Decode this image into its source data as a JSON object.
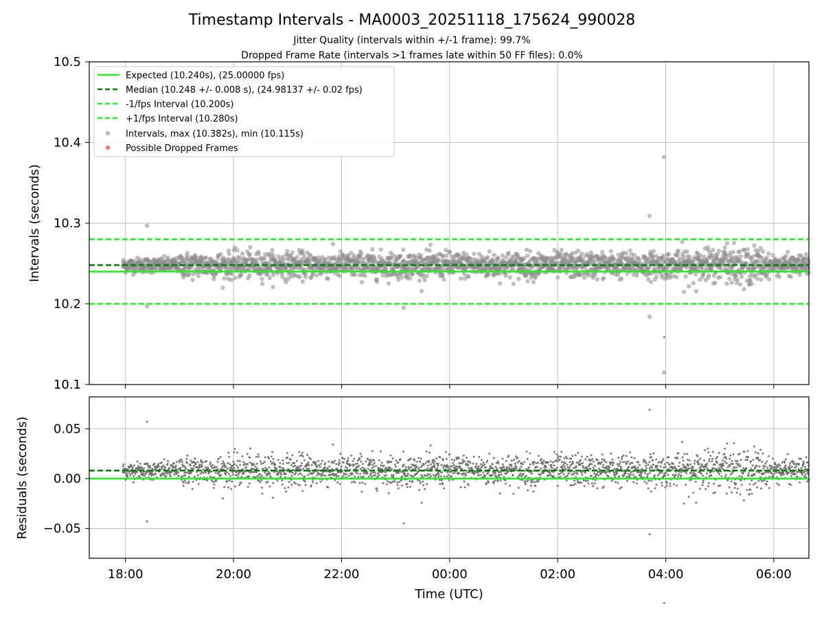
{
  "colors": {
    "expected": "#22ee22",
    "median": "#0a7a0a",
    "fps_band": "#22ee22",
    "interval_points": "#8c8c8c",
    "dropped": "#ff5555",
    "grid": "#b0b0b0"
  },
  "chart_data": [
    {
      "type": "scatter",
      "title": "Timestamp Intervals - MA0003_20251118_175624_990028",
      "subtitle_lines": [
        "Jitter Quality (intervals within +/-1 frame): 99.7%",
        "Dropped Frame Rate (intervals >1 frames late within 50 FF files): 0.0%"
      ],
      "xlabel": "",
      "ylabel": "Intervals (seconds)",
      "x_range_hours": [
        17.33,
        30.65
      ],
      "xlim_labels": [
        "18:00",
        "20:00",
        "22:00",
        "00:00",
        "02:00",
        "04:00",
        "06:00"
      ],
      "x_tick_hours": [
        18,
        20,
        22,
        24,
        26,
        28,
        30
      ],
      "ylim": [
        10.1,
        10.5
      ],
      "y_ticks": [
        "10.1",
        "10.2",
        "10.3",
        "10.4",
        "10.5"
      ],
      "y_tick_values": [
        10.1,
        10.2,
        10.3,
        10.4,
        10.5
      ],
      "grid": true,
      "legend_position": "top-left",
      "reference_lines": [
        {
          "name": "Expected (10.240s), (25.00000 fps)",
          "value": 10.24,
          "style": "solid"
        },
        {
          "name": "Median (10.248 +/- 0.008 s), (24.98137 +/- 0.02 fps)",
          "value": 10.248,
          "style": "dashed"
        },
        {
          "name": "-1/fps Interval (10.200s)",
          "value": 10.2,
          "style": "dashed"
        },
        {
          "name": "+1/fps Interval (10.280s)",
          "value": 10.28,
          "style": "dashed"
        }
      ],
      "series": [
        {
          "name": "Intervals, max (10.382s), min (10.115s)",
          "kind": "points"
        },
        {
          "name": "Possible Dropped Frames",
          "kind": "points"
        }
      ],
      "data_span_hours": [
        17.95,
        30.65
      ],
      "median": 10.248,
      "median_spread": 0.008,
      "outliers": [
        {
          "x_hour": 18.4,
          "y": 10.297
        },
        {
          "x_hour": 18.4,
          "y": 10.197
        },
        {
          "x_hour": 23.15,
          "y": 10.195
        },
        {
          "x_hour": 27.7,
          "y": 10.309
        },
        {
          "x_hour": 27.7,
          "y": 10.184
        },
        {
          "x_hour": 27.97,
          "y": 10.382
        },
        {
          "x_hour": 27.97,
          "y": 10.115
        }
      ]
    },
    {
      "type": "scatter",
      "xlabel": "Time (UTC)",
      "ylabel": "Residuals (seconds)",
      "x_range_hours": [
        17.33,
        30.65
      ],
      "xlim_labels": [
        "18:00",
        "20:00",
        "22:00",
        "00:00",
        "02:00",
        "04:00",
        "06:00"
      ],
      "x_tick_hours": [
        18,
        20,
        22,
        24,
        26,
        28,
        30
      ],
      "ylim": [
        -0.08,
        0.082
      ],
      "y_ticks": [
        "−0.05",
        "0.00",
        "0.05"
      ],
      "y_tick_values": [
        -0.05,
        0.0,
        0.05
      ],
      "grid": true,
      "reference_lines": [
        {
          "value": 0.0,
          "style": "solid"
        },
        {
          "value": 0.008,
          "style": "dashed"
        }
      ],
      "median": 0.008,
      "outliers": [
        {
          "x_hour": 18.4,
          "y": 0.058
        },
        {
          "x_hour": 18.4,
          "y": -0.043
        },
        {
          "x_hour": 23.15,
          "y": -0.045
        },
        {
          "x_hour": 27.7,
          "y": 0.07
        },
        {
          "x_hour": 27.7,
          "y": -0.056
        }
      ]
    }
  ]
}
